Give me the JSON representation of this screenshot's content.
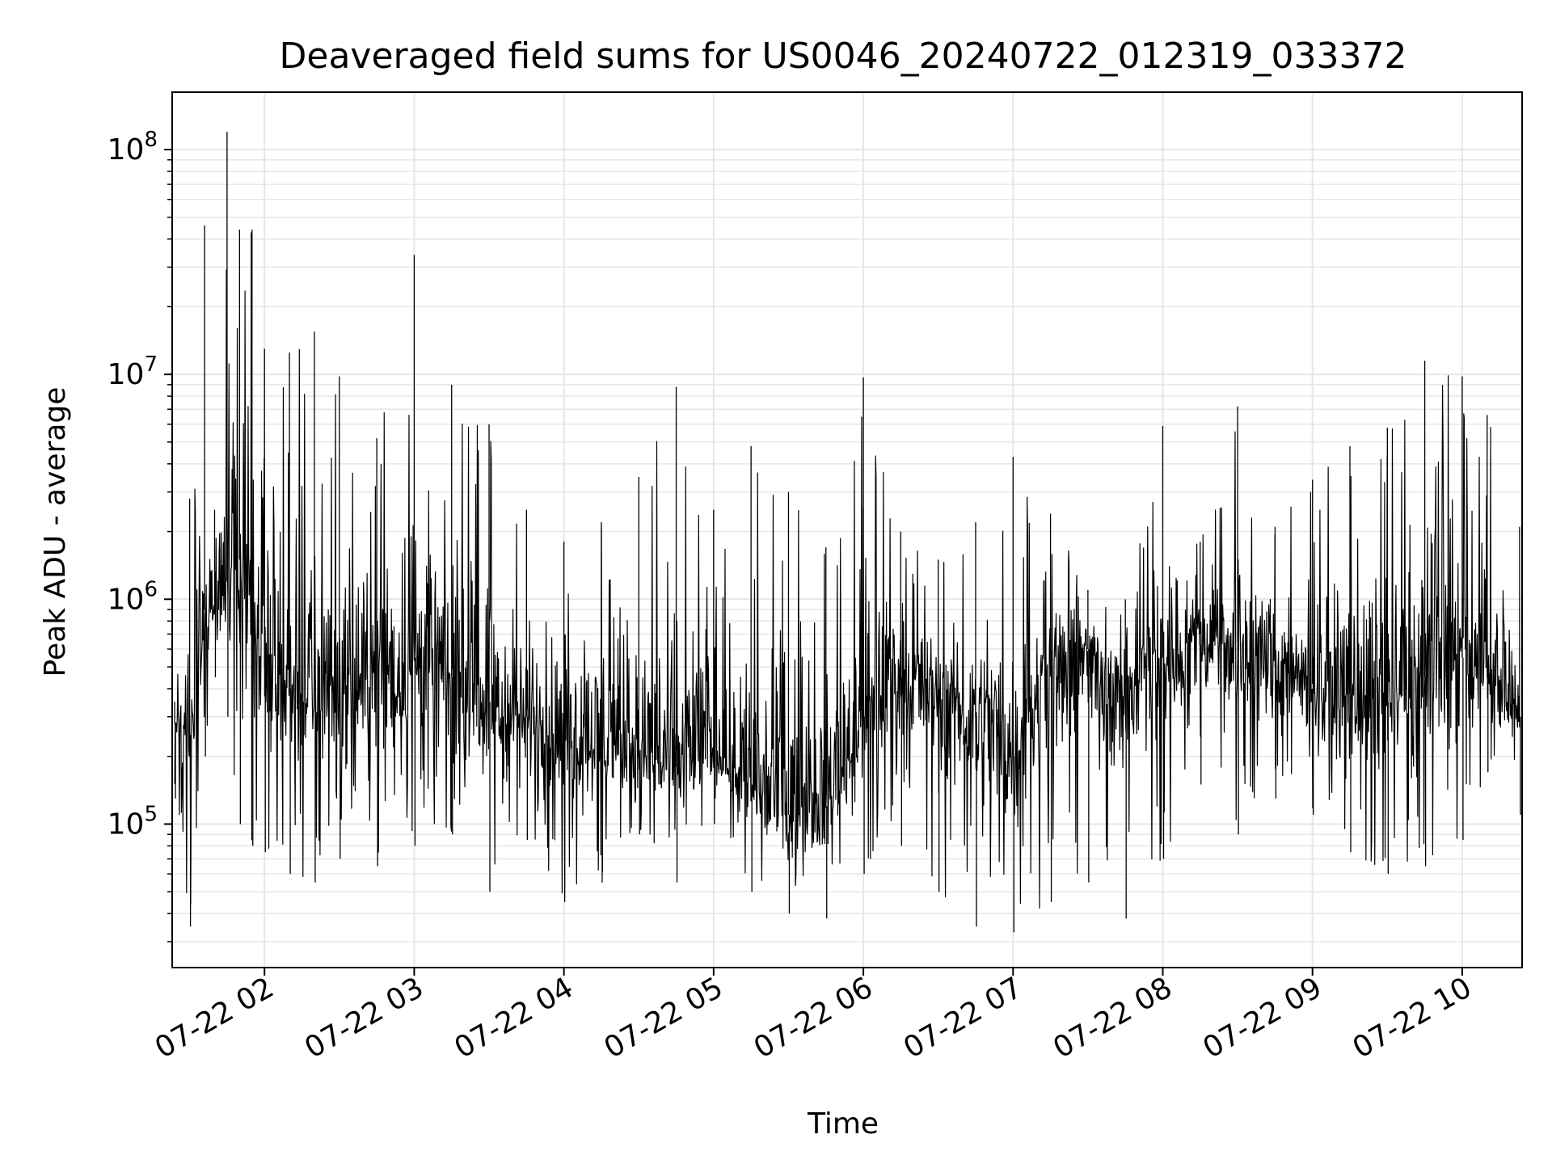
{
  "chart_data": {
    "type": "line",
    "title": "Deaveraged field sums for US0046_20240722_012319_033372",
    "xlabel": "Time",
    "ylabel": "Peak ADU - average",
    "yscale": "log",
    "grid": true,
    "line_color": "#000000",
    "grid_color": "#e6e6e6",
    "xlim": [
      "2024-07-22 01:23",
      "2024-07-22 10:24"
    ],
    "ylim": [
      23000,
      180000000
    ],
    "x_ticks": [
      {
        "t": "2024-07-22 02:00",
        "label": "07-22 02"
      },
      {
        "t": "2024-07-22 03:00",
        "label": "07-22 03"
      },
      {
        "t": "2024-07-22 04:00",
        "label": "07-22 04"
      },
      {
        "t": "2024-07-22 05:00",
        "label": "07-22 05"
      },
      {
        "t": "2024-07-22 06:00",
        "label": "07-22 06"
      },
      {
        "t": "2024-07-22 07:00",
        "label": "07-22 07"
      },
      {
        "t": "2024-07-22 08:00",
        "label": "07-22 08"
      },
      {
        "t": "2024-07-22 09:00",
        "label": "07-22 09"
      },
      {
        "t": "2024-07-22 10:00",
        "label": "07-22 10"
      }
    ],
    "y_ticks": [
      {
        "value": 100000,
        "base": "10",
        "exp": "5"
      },
      {
        "value": 1000000,
        "base": "10",
        "exp": "6"
      },
      {
        "value": 10000000,
        "base": "10",
        "exp": "7"
      },
      {
        "value": 100000000,
        "base": "10",
        "exp": "8"
      }
    ],
    "x": [
      "2024-07-22 01:24",
      "2024-07-22 01:30",
      "2024-07-22 01:36",
      "2024-07-22 01:40",
      "2024-07-22 01:45",
      "2024-07-22 01:50",
      "2024-07-22 01:55",
      "2024-07-22 02:00",
      "2024-07-22 02:10",
      "2024-07-22 02:20",
      "2024-07-22 02:30",
      "2024-07-22 02:45",
      "2024-07-22 03:00",
      "2024-07-22 03:15",
      "2024-07-22 03:30",
      "2024-07-22 03:45",
      "2024-07-22 04:00",
      "2024-07-22 04:15",
      "2024-07-22 04:30",
      "2024-07-22 04:45",
      "2024-07-22 05:00",
      "2024-07-22 05:15",
      "2024-07-22 05:30",
      "2024-07-22 05:45",
      "2024-07-22 06:00",
      "2024-07-22 06:15",
      "2024-07-22 06:30",
      "2024-07-22 06:45",
      "2024-07-22 07:00",
      "2024-07-22 07:15",
      "2024-07-22 07:30",
      "2024-07-22 07:45",
      "2024-07-22 08:00",
      "2024-07-22 08:15",
      "2024-07-22 08:30",
      "2024-07-22 08:45",
      "2024-07-22 09:00",
      "2024-07-22 09:15",
      "2024-07-22 09:30",
      "2024-07-22 09:45",
      "2024-07-22 10:00",
      "2024-07-22 10:10",
      "2024-07-22 10:23"
    ],
    "series": [
      {
        "typical": [
          280000,
          250000,
          900000,
          1000000,
          1200000,
          1500000,
          1300000,
          500000,
          400000,
          380000,
          380000,
          450000,
          550000,
          450000,
          350000,
          300000,
          260000,
          240000,
          200000,
          180000,
          220000,
          150000,
          110000,
          120000,
          300000,
          450000,
          400000,
          300000,
          200000,
          500000,
          600000,
          400000,
          550000,
          700000,
          650000,
          500000,
          420000,
          380000,
          350000,
          450000,
          550000,
          450000,
          300000
        ],
        "upper": [
          350000,
          2800000,
          46000000,
          2500000,
          120000000,
          44000000,
          44000000,
          13000000,
          12500000,
          15500000,
          9800000,
          5200000,
          34000000,
          9000000,
          6000000,
          2500000,
          1800000,
          2200000,
          3500000,
          8800000,
          2500000,
          4800000,
          3000000,
          1700000,
          9700000,
          2000000,
          1500000,
          2200000,
          4300000,
          2400000,
          1100000,
          1000000,
          5900000,
          1800000,
          7200000,
          2100000,
          3400000,
          4800000,
          5800000,
          11500000,
          9800000,
          6600000,
          2100000
        ],
        "lower": [
          130000,
          35000,
          200000,
          450000,
          300000,
          100000,
          80000,
          75000,
          60000,
          55000,
          70000,
          65000,
          80000,
          90000,
          50000,
          85000,
          45000,
          55000,
          90000,
          55000,
          100000,
          50000,
          40000,
          38000,
          60000,
          80000,
          50000,
          35000,
          33000,
          45000,
          55000,
          38000,
          70000,
          150000,
          90000,
          130000,
          110000,
          75000,
          60000,
          65000,
          85000,
          170000,
          110000
        ]
      }
    ]
  }
}
